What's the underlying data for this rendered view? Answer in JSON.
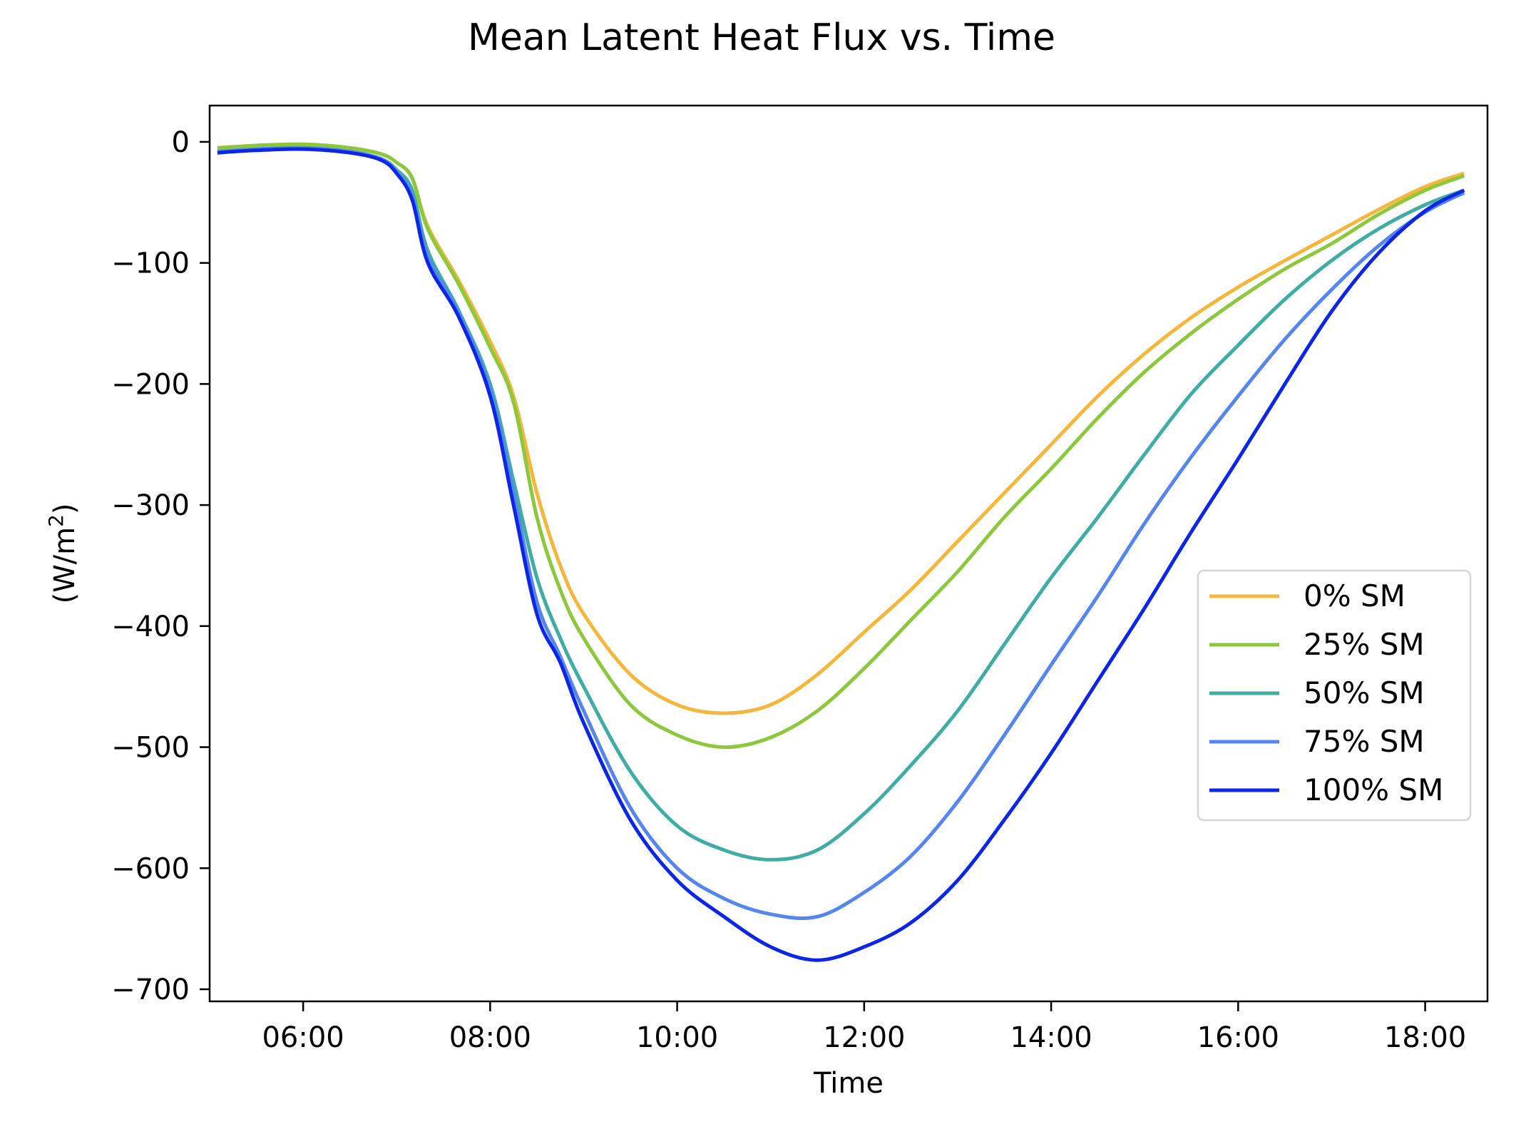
{
  "chart_data": {
    "type": "line",
    "title": "Mean Latent Heat Flux vs. Time",
    "xlabel": "Time",
    "ylabel": "(W/m",
    "ylabel_sup": "2",
    "ylabel_close": ")",
    "xlim": [
      "05:00",
      "18:40"
    ],
    "ylim": [
      -710,
      30
    ],
    "xticks": [
      "06:00",
      "08:00",
      "10:00",
      "12:00",
      "14:00",
      "16:00",
      "18:00"
    ],
    "yticks": [
      0,
      -100,
      -200,
      -300,
      -400,
      -500,
      -600,
      -700
    ],
    "ytick_labels": [
      "0",
      "−100",
      "−200",
      "−300",
      "−400",
      "−500",
      "−600",
      "−700"
    ],
    "grid": false,
    "legend_position": "center-right",
    "x": [
      "05:05",
      "05:30",
      "06:00",
      "06:30",
      "06:50",
      "07:00",
      "07:10",
      "07:20",
      "07:40",
      "08:00",
      "08:15",
      "08:30",
      "08:45",
      "09:00",
      "09:30",
      "10:00",
      "10:30",
      "11:00",
      "11:30",
      "12:00",
      "12:30",
      "13:00",
      "13:30",
      "14:00",
      "14:30",
      "15:00",
      "15:30",
      "16:00",
      "16:30",
      "17:00",
      "17:30",
      "18:00",
      "18:25"
    ],
    "series": [
      {
        "name": "0% SM",
        "color": "#F5B73B",
        "values": [
          -5,
          -3,
          -2,
          -5,
          -10,
          -17,
          -30,
          -70,
          -115,
          -165,
          -210,
          -290,
          -350,
          -390,
          -440,
          -465,
          -472,
          -465,
          -440,
          -405,
          -370,
          -330,
          -290,
          -250,
          -210,
          -175,
          -145,
          -120,
          -98,
          -77,
          -56,
          -37,
          -26
        ]
      },
      {
        "name": "25% SM",
        "color": "#8CC83C",
        "values": [
          -5,
          -3,
          -2,
          -5,
          -10,
          -17,
          -30,
          -72,
          -118,
          -170,
          -215,
          -310,
          -370,
          -410,
          -465,
          -490,
          -500,
          -492,
          -470,
          -435,
          -395,
          -355,
          -310,
          -270,
          -228,
          -190,
          -158,
          -130,
          -105,
          -84,
          -60,
          -40,
          -28
        ]
      },
      {
        "name": "50% SM",
        "color": "#3FACA6",
        "values": [
          -8,
          -6,
          -5,
          -8,
          -14,
          -23,
          -40,
          -90,
          -140,
          -200,
          -280,
          -360,
          -410,
          -450,
          -520,
          -565,
          -585,
          -593,
          -585,
          -555,
          -515,
          -470,
          -415,
          -360,
          -310,
          -258,
          -208,
          -168,
          -130,
          -98,
          -72,
          -52,
          -40
        ]
      },
      {
        "name": "75% SM",
        "color": "#5585EE",
        "values": [
          -8,
          -6,
          -5,
          -8,
          -14,
          -25,
          -45,
          -95,
          -142,
          -205,
          -290,
          -380,
          -425,
          -470,
          -550,
          -600,
          -625,
          -638,
          -640,
          -620,
          -590,
          -545,
          -490,
          -432,
          -375,
          -315,
          -260,
          -210,
          -163,
          -122,
          -86,
          -58,
          -42
        ]
      },
      {
        "name": "100% SM",
        "color": "#0C26E6",
        "values": [
          -9,
          -7,
          -6,
          -9,
          -15,
          -26,
          -48,
          -100,
          -145,
          -210,
          -300,
          -390,
          -430,
          -480,
          -560,
          -610,
          -640,
          -665,
          -676,
          -665,
          -645,
          -610,
          -560,
          -505,
          -445,
          -385,
          -322,
          -262,
          -200,
          -140,
          -92,
          -57,
          -40
        ]
      }
    ]
  }
}
